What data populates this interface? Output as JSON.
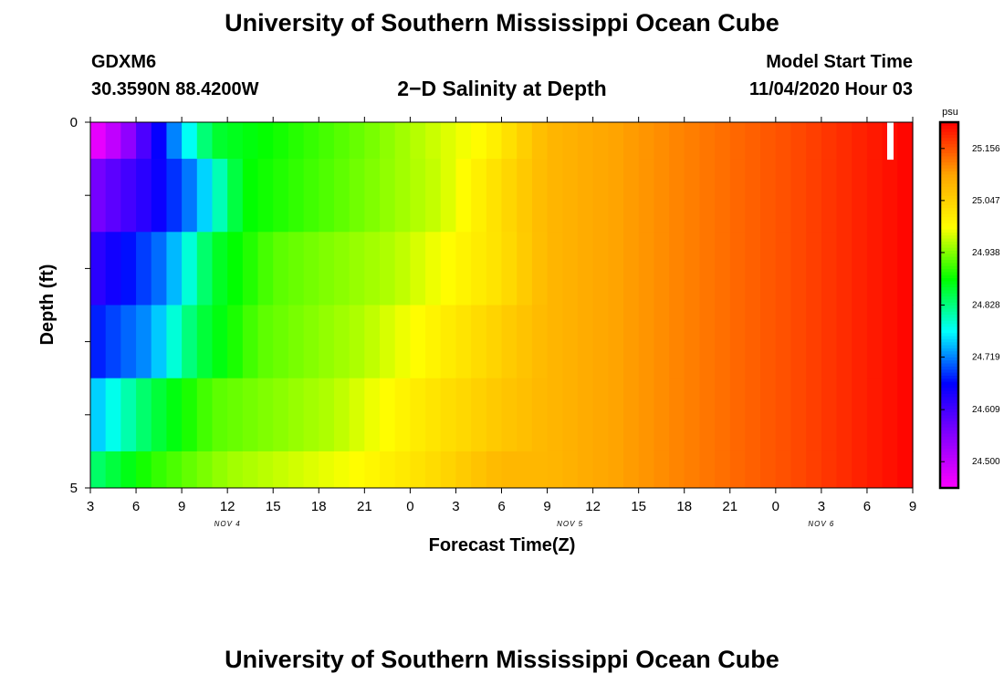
{
  "header": {
    "title": "University of Southern Mississippi Ocean Cube",
    "station": "GDXM6",
    "coords": "30.3590N 88.4200W",
    "subtitle": "2−D Salinity at Depth",
    "model_start_label": "Model Start Time",
    "model_start_value": "11/04/2020 Hour 03"
  },
  "footer": {
    "title": "University of Southern Mississippi Ocean Cube"
  },
  "chart_data": {
    "type": "heatmap",
    "xlabel": "Forecast Time(Z)",
    "ylabel": "Depth (ft)",
    "x_tick_labels": [
      "3",
      "6",
      "9",
      "12",
      "15",
      "18",
      "21",
      "0",
      "3",
      "6",
      "9",
      "12",
      "15",
      "18",
      "21",
      "0",
      "3",
      "6",
      "9"
    ],
    "date_labels": [
      {
        "label": "NOV 4",
        "tick_index": 3
      },
      {
        "label": "NOV 5",
        "tick_index": 10.5
      },
      {
        "label": "NOV 6",
        "tick_index": 16
      }
    ],
    "y_tick_labels": [
      "0",
      "5"
    ],
    "ylim": [
      0,
      5
    ],
    "colorbar": {
      "unit": "psu",
      "ticks": [
        24.5,
        24.609,
        24.719,
        24.828,
        24.938,
        25.047,
        25.156
      ],
      "tick_labels": [
        "24.500",
        "24.609",
        "24.719",
        "24.828",
        "24.938",
        "25.047",
        "25.156"
      ],
      "range": [
        24.445,
        25.211
      ],
      "colors": [
        "#ff00ff",
        "#8800ff",
        "#0000ff",
        "#00ffff",
        "#00ff00",
        "#ffff00",
        "#ffa500",
        "#ff0000"
      ]
    },
    "columns": 54,
    "rows": [
      {
        "depth_band": "0-0.5",
        "keys": [
          [
            0,
            24.45
          ],
          [
            2,
            24.52
          ],
          [
            4,
            24.63
          ],
          [
            6,
            24.75
          ],
          [
            8,
            24.86
          ],
          [
            18,
            24.93
          ],
          [
            26,
            25.0
          ],
          [
            30,
            25.08
          ],
          [
            38,
            25.12
          ],
          [
            46,
            25.16
          ],
          [
            54,
            25.21
          ]
        ]
      },
      {
        "depth_band": "0.5-1.5",
        "keys": [
          [
            0,
            24.56
          ],
          [
            4,
            24.64
          ],
          [
            7,
            24.73
          ],
          [
            10,
            24.88
          ],
          [
            16,
            24.92
          ],
          [
            23,
            24.97
          ],
          [
            28,
            25.05
          ],
          [
            30,
            25.08
          ],
          [
            38,
            25.12
          ],
          [
            46,
            25.16
          ],
          [
            54,
            25.21
          ]
        ]
      },
      {
        "depth_band": "1.5-2.5",
        "keys": [
          [
            0,
            24.62
          ],
          [
            5,
            24.72
          ],
          [
            8,
            24.86
          ],
          [
            12,
            24.92
          ],
          [
            20,
            24.96
          ],
          [
            27,
            25.03
          ],
          [
            30,
            25.08
          ],
          [
            38,
            25.12
          ],
          [
            46,
            25.16
          ],
          [
            54,
            25.21
          ]
        ]
      },
      {
        "depth_band": "2.5-3.5",
        "keys": [
          [
            0,
            24.67
          ],
          [
            4,
            24.73
          ],
          [
            7,
            24.85
          ],
          [
            11,
            24.92
          ],
          [
            18,
            24.96
          ],
          [
            25,
            25.03
          ],
          [
            30,
            25.08
          ],
          [
            38,
            25.12
          ],
          [
            46,
            25.16
          ],
          [
            54,
            25.21
          ]
        ]
      },
      {
        "depth_band": "3.5-4.5",
        "keys": [
          [
            0,
            24.74
          ],
          [
            4,
            24.85
          ],
          [
            8,
            24.92
          ],
          [
            16,
            24.96
          ],
          [
            22,
            25.02
          ],
          [
            27,
            25.06
          ],
          [
            30,
            25.08
          ],
          [
            38,
            25.12
          ],
          [
            46,
            25.16
          ],
          [
            54,
            25.21
          ]
        ]
      },
      {
        "depth_band": "4.5-5",
        "keys": [
          [
            0,
            24.83
          ],
          [
            4,
            24.9
          ],
          [
            9,
            24.95
          ],
          [
            17,
            24.99
          ],
          [
            22,
            25.03
          ],
          [
            27,
            25.08
          ],
          [
            30,
            25.08
          ],
          [
            38,
            25.12
          ],
          [
            46,
            25.16
          ],
          [
            54,
            25.21
          ]
        ]
      }
    ],
    "marker": {
      "type": "white-bar",
      "column": 52.5,
      "depth_band": "0-0.5"
    }
  }
}
